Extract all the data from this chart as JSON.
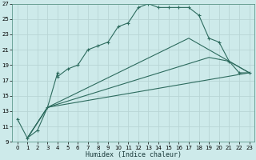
{
  "xlabel": "Humidex (Indice chaleur)",
  "background_color": "#cdeaea",
  "grid_color": "#b8d5d5",
  "line_color": "#2d6b5e",
  "xlim": [
    -0.5,
    23.5
  ],
  "ylim": [
    9,
    27
  ],
  "yticks": [
    9,
    11,
    13,
    15,
    17,
    19,
    21,
    23,
    25,
    27
  ],
  "xticks": [
    0,
    1,
    2,
    3,
    4,
    5,
    6,
    7,
    8,
    9,
    10,
    11,
    12,
    13,
    14,
    15,
    16,
    17,
    18,
    19,
    20,
    21,
    22,
    23
  ],
  "line1_x": [
    0,
    1,
    2,
    3,
    4,
    4,
    5,
    6,
    7,
    8,
    9,
    10,
    11,
    12,
    13,
    14,
    15,
    16,
    17,
    18,
    19,
    20,
    21,
    22,
    23
  ],
  "line1_y": [
    12,
    9.5,
    10.5,
    13.5,
    18,
    17.5,
    18.5,
    19,
    21,
    21.5,
    22,
    24,
    24.5,
    26.5,
    27,
    26.5,
    26.5,
    26.5,
    26.5,
    25.5,
    22.5,
    22,
    19.5,
    18,
    18
  ],
  "line2_x": [
    1,
    3,
    23
  ],
  "line2_y": [
    9.5,
    13.5,
    18
  ],
  "line3_x": [
    1,
    3,
    19,
    21,
    23
  ],
  "line3_y": [
    9.5,
    13.5,
    20,
    19.5,
    18
  ],
  "line4_x": [
    1,
    3,
    17,
    23
  ],
  "line4_y": [
    9.5,
    13.5,
    22.5,
    18
  ]
}
